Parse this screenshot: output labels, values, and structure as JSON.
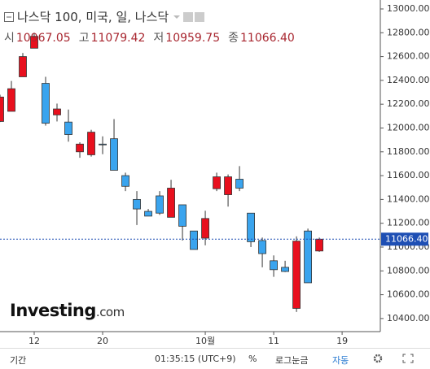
{
  "chart_data": {
    "type": "candlestick",
    "title": "나스닥 100, 미국, 일, 나스닥",
    "ohlc_names": [
      "시",
      "고",
      "저",
      "종"
    ],
    "ohlc_values": [
      10967.05,
      11079.42,
      10959.75,
      11066.4
    ],
    "ohlc_value_labels": [
      "10967.05",
      "11079.42",
      "10959.75",
      "11066.40"
    ],
    "open": [
      12055,
      12140,
      12430,
      12670,
      12375,
      12110,
      12050,
      11800,
      11775,
      11865,
      11910,
      11600,
      11400,
      11300,
      11430,
      11250,
      11355,
      11135,
      11075,
      11490,
      11440,
      11570,
      11285,
      11055,
      10885,
      10830,
      10485,
      11135,
      10967.05
    ],
    "high": [
      12280,
      12395,
      12630,
      12800,
      12430,
      12205,
      12155,
      11880,
      11985,
      11930,
      12075,
      11625,
      11470,
      11320,
      11470,
      11565,
      11355,
      11135,
      11305,
      11625,
      11610,
      11680,
      11285,
      11080,
      10930,
      10885,
      11090,
      11155,
      11079.42
    ],
    "low": [
      12050,
      12140,
      12430,
      12670,
      12020,
      12055,
      11885,
      11750,
      11760,
      11780,
      11645,
      11470,
      11185,
      11260,
      11270,
      11250,
      11055,
      10980,
      11015,
      11470,
      11340,
      11470,
      11000,
      10830,
      10750,
      10790,
      10455,
      10700,
      10959.75
    ],
    "close": [
      12260,
      12330,
      12600,
      12770,
      12040,
      12160,
      11945,
      11865,
      11965,
      11862,
      11645,
      11510,
      11320,
      11260,
      11285,
      11495,
      11175,
      10980,
      11240,
      11590,
      11590,
      11495,
      11045,
      10945,
      10810,
      10795,
      11050,
      10700,
      11066.4
    ],
    "up_color": "#e8101e",
    "down_color": "#3aa4ee",
    "last_price": 11066.4,
    "last_price_label": "11066.40",
    "last_price_color": "#1e4fb4",
    "xlim": [
      0,
      33.35
    ],
    "xticks": [
      {
        "value": 3,
        "label": "12"
      },
      {
        "value": 9,
        "label": "20"
      },
      {
        "value": 18,
        "label": "10월"
      },
      {
        "value": 24,
        "label": "11"
      },
      {
        "value": 30,
        "label": "19"
      }
    ],
    "ylim": [
      10290,
      13075
    ],
    "yticks": [
      {
        "value": 13000,
        "label": "13000.00"
      },
      {
        "value": 12800,
        "label": "12800.00"
      },
      {
        "value": 12600,
        "label": "12600.00"
      },
      {
        "value": 12400,
        "label": "12400.00"
      },
      {
        "value": 12200,
        "label": "12200.00"
      },
      {
        "value": 12000,
        "label": "12000.00"
      },
      {
        "value": 11800,
        "label": "11800.00"
      },
      {
        "value": 11600,
        "label": "11600.00"
      },
      {
        "value": 11400,
        "label": "11400.00"
      },
      {
        "value": 11200,
        "label": "11200.00"
      },
      {
        "value": 11000,
        "label": "11000.00"
      },
      {
        "value": 10800,
        "label": "10800.00"
      },
      {
        "value": 10600,
        "label": "10600.00"
      },
      {
        "value": 10400,
        "label": "10400.00"
      }
    ],
    "logo": "Investing",
    "logo_suffix": ".com"
  },
  "toolbar": {
    "period": "기간",
    "time": "01:35:15 (UTC+9)",
    "percent": "%",
    "log": "로그눈금",
    "auto": "자동"
  }
}
